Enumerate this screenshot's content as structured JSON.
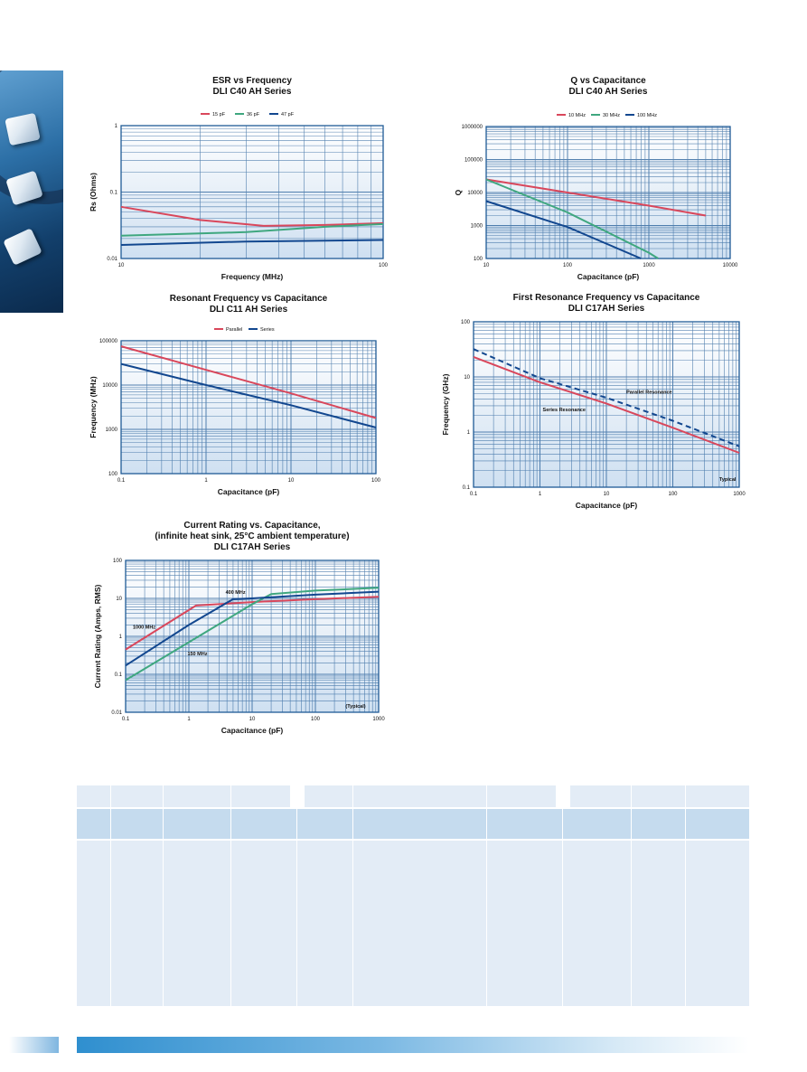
{
  "colors": {
    "plot_bg_top": "#ffffff",
    "plot_bg_bottom": "#cfe0f1",
    "grid": "#1f5a96",
    "red": "#d9475b",
    "green": "#3fa77f",
    "blue": "#12478f"
  },
  "chart_data": [
    {
      "id": "esr",
      "type": "line",
      "title": [
        "ESR vs Frequency",
        "DLI C40 AH Series"
      ],
      "xlabel": "Frequency (MHz)",
      "ylabel": "Rs (Ohms)",
      "xscale": "log",
      "yscale": "log",
      "xlim": [
        10,
        100
      ],
      "ylim": [
        0.01,
        1
      ],
      "xticks": [
        10,
        100
      ],
      "xtick_labels": [
        "10",
        "100"
      ],
      "yticks": [
        0.01,
        0.1,
        1
      ],
      "ytick_labels": [
        "0.01",
        "0.1",
        "1"
      ],
      "legend": [
        "15 pF",
        "36 pF",
        "47 pF"
      ],
      "series": [
        {
          "name": "15 pF",
          "color": "red",
          "dash": false,
          "points": [
            [
              10,
              0.06
            ],
            [
              20,
              0.038
            ],
            [
              35,
              0.031
            ],
            [
              60,
              0.032
            ],
            [
              100,
              0.034
            ]
          ]
        },
        {
          "name": "36 pF",
          "color": "green",
          "dash": false,
          "points": [
            [
              10,
              0.022
            ],
            [
              30,
              0.025
            ],
            [
              60,
              0.03
            ],
            [
              100,
              0.033
            ]
          ]
        },
        {
          "name": "47 pF",
          "color": "blue",
          "dash": false,
          "points": [
            [
              10,
              0.016
            ],
            [
              30,
              0.018
            ],
            [
              100,
              0.019
            ]
          ]
        }
      ],
      "annotations": []
    },
    {
      "id": "qcap",
      "type": "line",
      "title": [
        "Q vs Capacitance",
        "DLI C40 AH Series"
      ],
      "xlabel": "Capacitance (pF)",
      "ylabel": "Q",
      "xscale": "log",
      "yscale": "log",
      "xlim": [
        10,
        10000
      ],
      "ylim": [
        100,
        1000000
      ],
      "xticks": [
        10,
        100,
        1000,
        10000
      ],
      "xtick_labels": [
        "10",
        "100",
        "1000",
        "10000"
      ],
      "yticks": [
        100,
        1000,
        10000,
        100000,
        1000000
      ],
      "ytick_labels": [
        "100",
        "1000",
        "10000",
        "100000",
        "1000000"
      ],
      "legend": [
        "10 MHz",
        "30 MHz",
        "100 MHz"
      ],
      "series": [
        {
          "name": "10 MHz",
          "color": "red",
          "dash": false,
          "points": [
            [
              10,
              25000
            ],
            [
              100,
              10000
            ],
            [
              1000,
              4000
            ],
            [
              5000,
              2000
            ]
          ]
        },
        {
          "name": "30 MHz",
          "color": "green",
          "dash": false,
          "points": [
            [
              10,
              25000
            ],
            [
              100,
              2500
            ],
            [
              1000,
              150
            ],
            [
              1300,
              100
            ]
          ]
        },
        {
          "name": "100 MHz",
          "color": "blue",
          "dash": false,
          "points": [
            [
              10,
              5500
            ],
            [
              100,
              900
            ],
            [
              800,
              100
            ]
          ]
        }
      ],
      "annotations": []
    },
    {
      "id": "resfreq",
      "type": "line",
      "title": [
        "Resonant Frequency vs Capacitance",
        "DLI C11 AH Series"
      ],
      "xlabel": "Capacitance (pF)",
      "ylabel": "Frequency (MHz)",
      "xscale": "log",
      "yscale": "log",
      "xlim": [
        0.1,
        100
      ],
      "ylim": [
        100,
        100000
      ],
      "xticks": [
        0.1,
        1,
        10,
        100
      ],
      "xtick_labels": [
        "0.1",
        "1",
        "10",
        "100"
      ],
      "yticks": [
        100,
        1000,
        10000,
        100000
      ],
      "ytick_labels": [
        "100",
        "1000",
        "10000",
        "100000"
      ],
      "legend": [
        "Parallel",
        "Series"
      ],
      "series": [
        {
          "name": "Parallel",
          "color": "red",
          "dash": false,
          "points": [
            [
              0.1,
              75000
            ],
            [
              1,
              22000
            ],
            [
              10,
              6500
            ],
            [
              100,
              1800
            ]
          ]
        },
        {
          "name": "Series",
          "color": "blue",
          "dash": false,
          "points": [
            [
              0.1,
              30000
            ],
            [
              1,
              10000
            ],
            [
              10,
              3500
            ],
            [
              100,
              1100
            ]
          ]
        }
      ],
      "annotations": []
    },
    {
      "id": "firstres",
      "type": "line",
      "title": [
        "First Resonance Frequency vs Capacitance",
        "DLI C17AH Series"
      ],
      "xlabel": "Capacitance (pF)",
      "ylabel": "Frequency (GHz)",
      "xscale": "log",
      "yscale": "log",
      "xlim": [
        0.1,
        1000
      ],
      "ylim": [
        0.1,
        100
      ],
      "xticks": [
        0.1,
        1,
        10,
        100,
        1000
      ],
      "xtick_labels": [
        "0.1",
        "1",
        "10",
        "100",
        "1000"
      ],
      "yticks": [
        0.1,
        1,
        10,
        100
      ],
      "ytick_labels": [
        "0.1",
        "1",
        "10",
        "100"
      ],
      "legend": [],
      "series": [
        {
          "name": "Parallel Resonance",
          "color": "blue",
          "dash": true,
          "points": [
            [
              0.1,
              32
            ],
            [
              1,
              9.5
            ],
            [
              10,
              4.2
            ],
            [
              100,
              1.6
            ],
            [
              1000,
              0.55
            ]
          ]
        },
        {
          "name": "Series Resonance",
          "color": "red",
          "dash": false,
          "points": [
            [
              0.1,
              23
            ],
            [
              1,
              8
            ],
            [
              10,
              3.3
            ],
            [
              100,
              1.2
            ],
            [
              1000,
              0.42
            ]
          ]
        }
      ],
      "annotations": [
        {
          "text": "Parallel Resonance",
          "x": 20,
          "y": 5
        },
        {
          "text": "Series Resonance",
          "x": 1.1,
          "y": 2.4
        },
        {
          "text": "Typical",
          "x": 500,
          "y": 0.13
        }
      ]
    },
    {
      "id": "current",
      "type": "line",
      "title": [
        "Current Rating vs. Capacitance,",
        "(infinite heat sink, 25°C ambient temperature)",
        "DLI C17AH Series"
      ],
      "xlabel": "Capacitance (pF)",
      "ylabel": "Current Rating (Amps, RMS)",
      "xscale": "log",
      "yscale": "log",
      "xlim": [
        0.1,
        1000
      ],
      "ylim": [
        0.01,
        100
      ],
      "xticks": [
        0.1,
        1,
        10,
        100,
        1000
      ],
      "xtick_labels": [
        "0.1",
        "1",
        "10",
        "100",
        "1000"
      ],
      "yticks": [
        0.01,
        0.1,
        1,
        10,
        100
      ],
      "ytick_labels": [
        "0.01",
        "0.1",
        "1",
        "10",
        "100"
      ],
      "legend": [],
      "series": [
        {
          "name": "1000 MHz",
          "color": "red",
          "dash": false,
          "points": [
            [
              0.1,
              0.45
            ],
            [
              1.3,
              6.5
            ],
            [
              10,
              8
            ],
            [
              100,
              9.5
            ],
            [
              1000,
              11
            ]
          ]
        },
        {
          "name": "150 MHz",
          "color": "green",
          "dash": false,
          "points": [
            [
              0.1,
              0.07
            ],
            [
              1,
              0.7
            ],
            [
              10,
              7
            ],
            [
              20,
              13
            ],
            [
              100,
              16
            ],
            [
              1000,
              19
            ]
          ]
        },
        {
          "name": "400 MHz",
          "color": "blue",
          "dash": false,
          "points": [
            [
              0.1,
              0.17
            ],
            [
              1,
              2
            ],
            [
              5,
              9.5
            ],
            [
              10,
              10
            ],
            [
              100,
              12.5
            ],
            [
              1000,
              15
            ]
          ]
        }
      ],
      "annotations": [
        {
          "text": "1000 MHz",
          "x": 0.13,
          "y": 1.6
        },
        {
          "text": "400 MHz",
          "x": 3.8,
          "y": 13
        },
        {
          "text": "150 MHz",
          "x": 0.95,
          "y": 0.32
        },
        {
          "text": "(Typical)",
          "x": 300,
          "y": 0.013
        }
      ]
    }
  ]
}
